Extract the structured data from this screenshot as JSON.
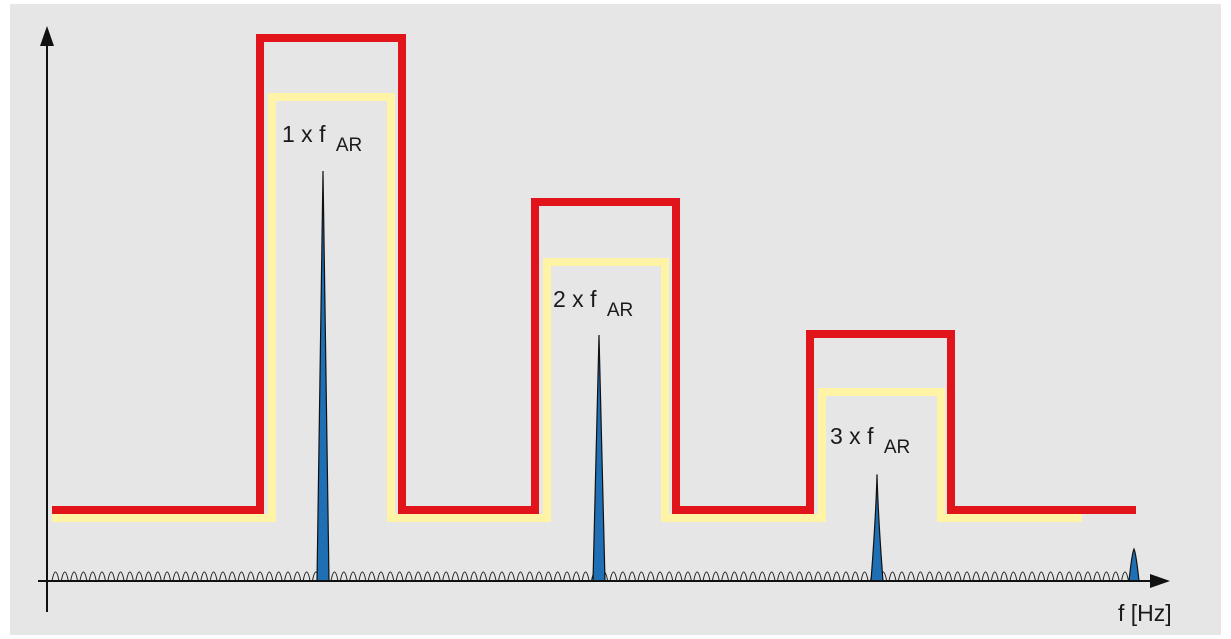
{
  "diagram": {
    "background": "#e6e6e6",
    "colors": {
      "outer_limit": "#e2141b",
      "inner_limit": "#fff3a6",
      "peak_fill": "#1f6fb5",
      "peak_outline": "#111111",
      "axis": "#111111"
    },
    "x_axis_label": "f [Hz]",
    "harmonics": [
      {
        "multiplier": "1 x f",
        "subscript": "AR",
        "relative_amplitude": 1.0
      },
      {
        "multiplier": "2 x f",
        "subscript": "AR",
        "relative_amplitude": 0.6
      },
      {
        "multiplier": "3 x f",
        "subscript": "AR",
        "relative_amplitude": 0.26
      }
    ]
  }
}
